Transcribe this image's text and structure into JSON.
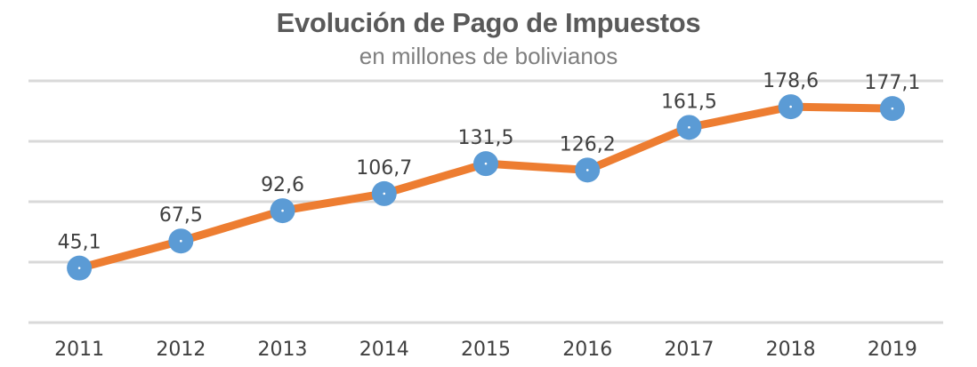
{
  "chart_data": {
    "type": "line",
    "title": "Evolución de Pago de Impuestos",
    "subtitle": "en millones de bolivianos",
    "xlabel": "",
    "ylabel": "",
    "categories": [
      "2011",
      "2012",
      "2013",
      "2014",
      "2015",
      "2016",
      "2017",
      "2018",
      "2019"
    ],
    "series": [
      {
        "values": [
          45.1,
          67.5,
          92.6,
          106.7,
          131.5,
          126.2,
          161.5,
          178.6,
          177.1
        ],
        "labels": [
          "45,1",
          "67,5",
          "92,6",
          "106,7",
          "131,5",
          "126,2",
          "161,5",
          "178,6",
          "177,1"
        ]
      }
    ],
    "ylim": [
      0,
      200
    ],
    "grid": true,
    "y_tick_labels_shown": false,
    "colors": {
      "line": "#ED7D31",
      "marker": "#5B9BD5",
      "grid": "#D9D9D9",
      "text": "#404040"
    }
  }
}
